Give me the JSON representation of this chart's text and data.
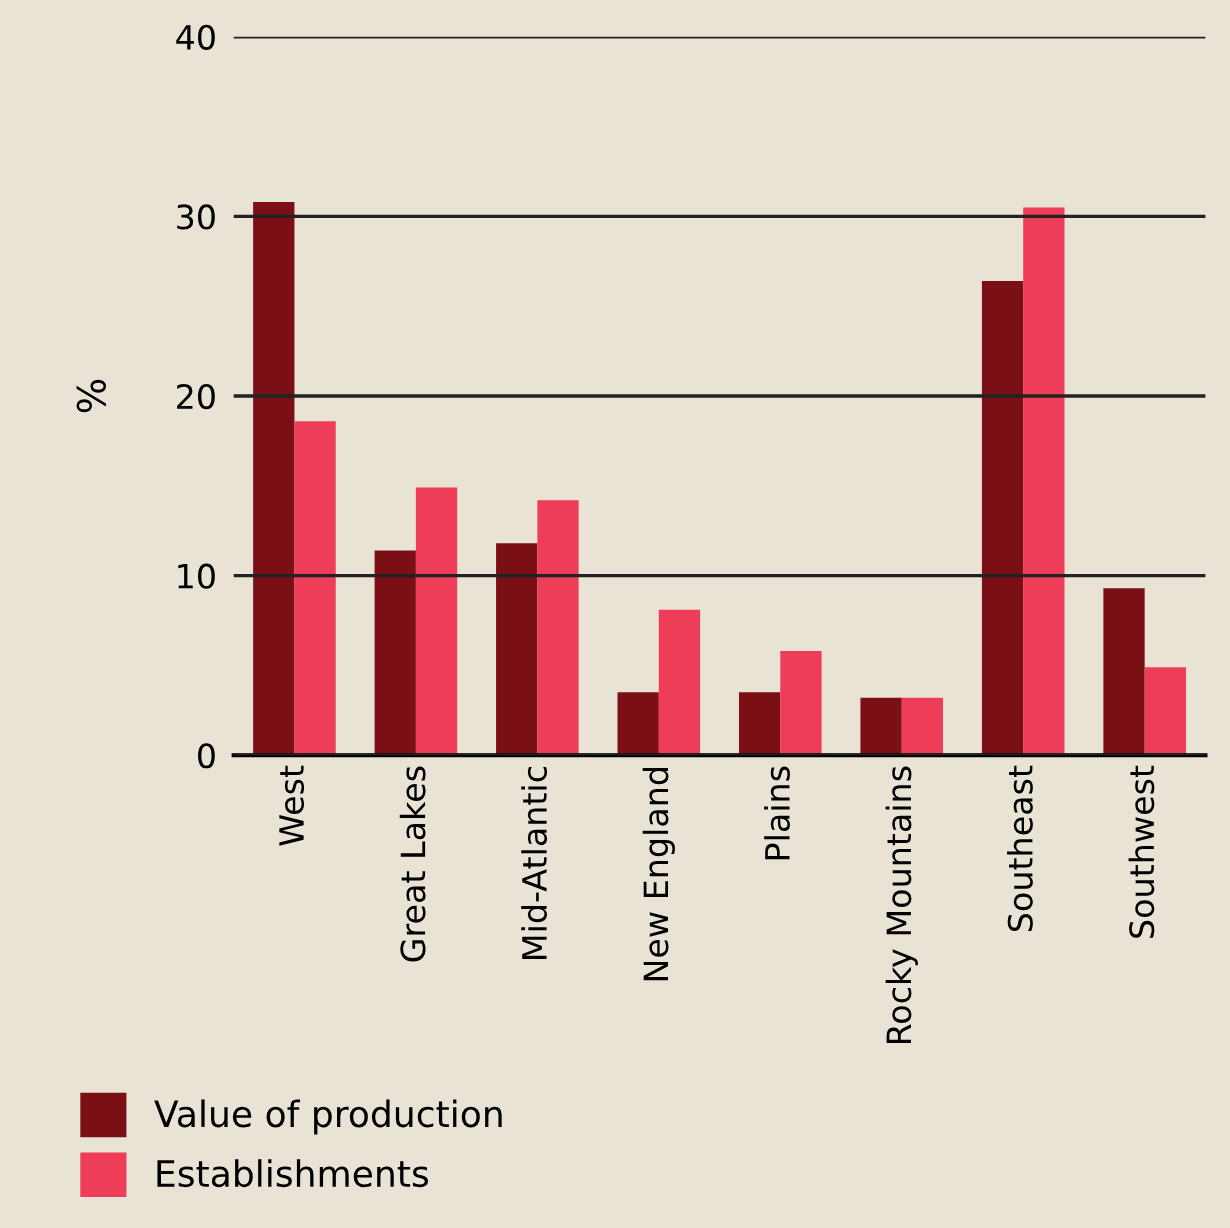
{
  "chart_data": {
    "type": "bar",
    "ylabel": "%",
    "categories": [
      "West",
      "Great Lakes",
      "Mid-Atlantic",
      "New England",
      "Plains",
      "Rocky Mountains",
      "Southeast",
      "Southwest"
    ],
    "series": [
      {
        "name": "Value of production",
        "color": "#7a1016",
        "values": [
          30.8,
          11.4,
          11.8,
          3.5,
          3.5,
          3.2,
          26.4,
          9.3
        ]
      },
      {
        "name": "Establishments",
        "color": "#ee3d58",
        "values": [
          18.6,
          14.9,
          14.2,
          8.1,
          5.8,
          3.2,
          30.5,
          4.9
        ]
      }
    ],
    "ylim": [
      0,
      40
    ],
    "yticks": [
      0,
      10,
      20,
      30,
      40
    ],
    "grid": "y",
    "legend": "bottom left"
  }
}
